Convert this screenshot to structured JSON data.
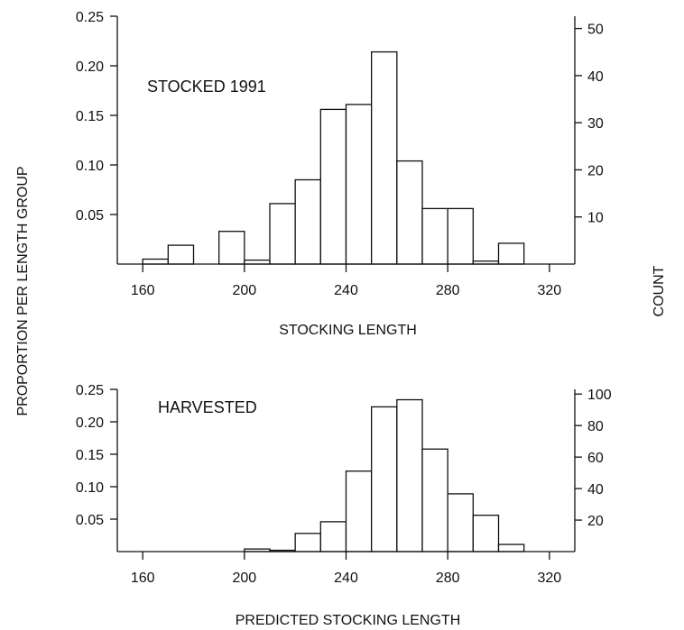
{
  "figure": {
    "shared_ylabel_left": "PROPORTION PER LENGTH GROUP",
    "shared_ylabel_right": "COUNT"
  },
  "chart_data": [
    {
      "type": "bar",
      "title": "STOCKED 1991",
      "xlabel": "STOCKING LENGTH",
      "ylabel_left": "PROPORTION PER LENGTH GROUP",
      "ylabel_right": "COUNT",
      "bin_width": 10,
      "bin_starts": [
        160,
        170,
        180,
        190,
        200,
        210,
        220,
        230,
        240,
        250,
        260,
        270,
        280,
        290,
        300
      ],
      "values": [
        0.005,
        0.019,
        0.0,
        0.033,
        0.004,
        0.061,
        0.085,
        0.156,
        0.161,
        0.214,
        0.104,
        0.056,
        0.056,
        0.003,
        0.021
      ],
      "xlim": [
        150,
        330
      ],
      "xticks": [
        160,
        200,
        240,
        280,
        320
      ],
      "ylim": [
        0,
        0.25
      ],
      "yticks": [
        0.05,
        0.1,
        0.15,
        0.2,
        0.25
      ],
      "ytick_labels": [
        "0.05",
        "0.10",
        "0.15",
        "0.20",
        "0.25"
      ],
      "y2lim": [
        0,
        52.6
      ],
      "y2ticks": [
        10,
        20,
        30,
        40,
        50
      ],
      "y2tick_labels": [
        "10",
        "20",
        "30",
        "40",
        "50"
      ],
      "grid": false
    },
    {
      "type": "bar",
      "title": "HARVESTED",
      "xlabel": "PREDICTED STOCKING LENGTH",
      "ylabel_left": "PROPORTION PER LENGTH GROUP",
      "ylabel_right": "COUNT",
      "bin_width": 10,
      "bin_starts": [
        200,
        210,
        220,
        230,
        240,
        250,
        260,
        270,
        280,
        290,
        300
      ],
      "values": [
        0.004,
        0.002,
        0.028,
        0.046,
        0.124,
        0.223,
        0.234,
        0.158,
        0.089,
        0.056,
        0.011
      ],
      "xlim": [
        150,
        330
      ],
      "xticks": [
        160,
        200,
        240,
        280,
        320
      ],
      "ylim": [
        0,
        0.25
      ],
      "yticks": [
        0.05,
        0.1,
        0.15,
        0.2,
        0.25
      ],
      "ytick_labels": [
        "0.05",
        "0.10",
        "0.15",
        "0.20",
        "0.25"
      ],
      "y2lim": [
        0,
        103
      ],
      "y2ticks": [
        20,
        40,
        60,
        80,
        100
      ],
      "y2tick_labels": [
        "20",
        "40",
        "60",
        "80",
        "100"
      ],
      "grid": false
    }
  ]
}
